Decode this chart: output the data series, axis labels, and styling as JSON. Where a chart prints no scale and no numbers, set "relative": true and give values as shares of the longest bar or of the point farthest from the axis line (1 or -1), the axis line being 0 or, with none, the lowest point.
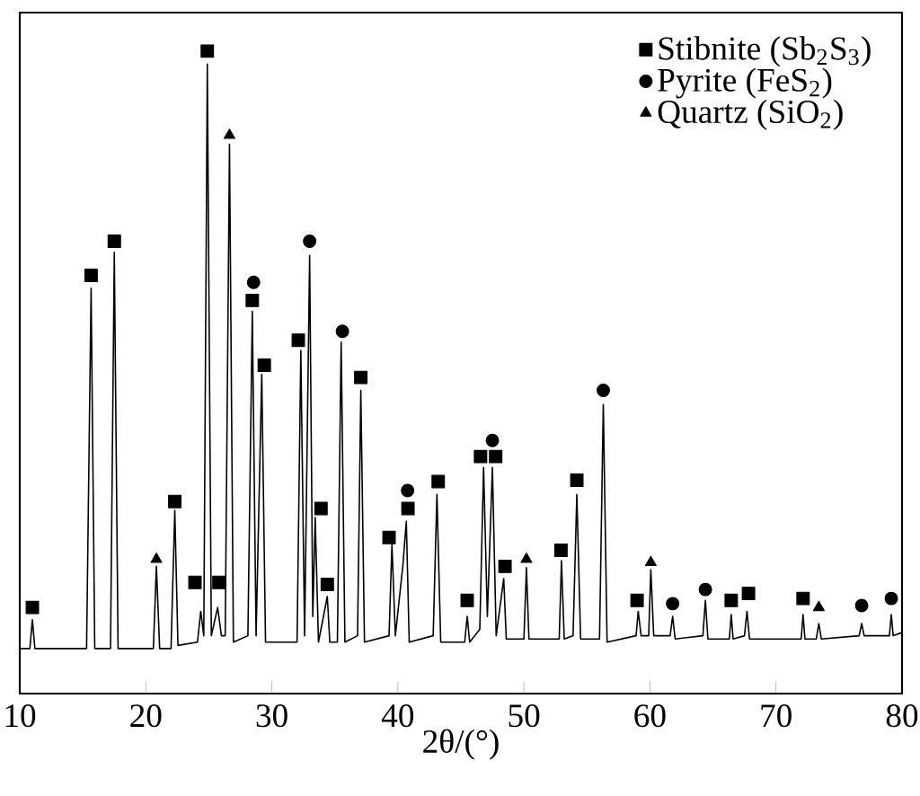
{
  "chart_data": {
    "type": "line",
    "relative": true,
    "xlabel": "2θ/(°)",
    "xlim": [
      10,
      80
    ],
    "xticks": [
      10,
      20,
      30,
      40,
      50,
      60,
      70,
      80
    ],
    "tick_labels": "x",
    "legend": "top right",
    "series": [
      {
        "color": "#000000",
        "x": [
          10,
          10.8,
          11.0,
          11.2,
          15.3,
          15.66,
          15.95,
          17.2,
          17.5,
          17.8,
          20.6,
          20.84,
          21.1,
          22.0,
          22.3,
          22.55,
          24.1,
          24.36,
          24.6,
          24.88,
          25.2,
          25.7,
          26.0,
          26.3,
          26.64,
          26.95,
          28.1,
          28.45,
          28.75,
          29.2,
          29.5,
          32.0,
          32.3,
          32.6,
          33.0,
          33.25,
          33.44,
          33.7,
          34.4,
          34.6,
          35.2,
          35.5,
          35.8,
          36.8,
          37.06,
          37.35,
          39.3,
          39.53,
          39.8,
          40.4,
          40.67,
          40.9,
          42.8,
          43.1,
          43.4,
          45.3,
          45.5,
          45.7,
          46.5,
          46.8,
          47.1,
          47.5,
          47.8,
          48.4,
          48.6,
          50.0,
          50.2,
          50.4,
          52.8,
          52.98,
          53.2,
          53.9,
          54.2,
          54.5,
          56.0,
          56.3,
          56.6,
          58.9,
          59.07,
          59.3,
          59.9,
          60.07,
          60.3,
          61.6,
          61.8,
          62.0,
          64.2,
          64.4,
          64.6,
          66.3,
          66.45,
          66.6,
          67.5,
          67.7,
          67.9,
          72.0,
          72.15,
          72.3,
          73.2,
          73.4,
          73.6,
          76.6,
          76.8,
          77.0,
          79.0,
          79.15,
          79.3,
          80
        ],
        "values": [
          0.07,
          0.07,
          0.115,
          0.07,
          0.07,
          0.631,
          0.07,
          0.07,
          0.687,
          0.07,
          0.07,
          0.198,
          0.07,
          0.07,
          0.285,
          0.075,
          0.08,
          0.128,
          0.09,
          0.98,
          0.09,
          0.134,
          0.09,
          0.09,
          0.855,
          0.08,
          0.09,
          0.595,
          0.09,
          0.497,
          0.08,
          0.08,
          0.534,
          0.09,
          0.682,
          0.12,
          0.274,
          0.08,
          0.151,
          0.08,
          0.08,
          0.547,
          0.08,
          0.09,
          0.472,
          0.08,
          0.09,
          0.232,
          0.09,
          0.2,
          0.268,
          0.08,
          0.09,
          0.31,
          0.08,
          0.08,
          0.12,
          0.08,
          0.1,
          0.352,
          0.12,
          0.352,
          0.09,
          0.179,
          0.085,
          0.085,
          0.196,
          0.085,
          0.085,
          0.207,
          0.085,
          0.09,
          0.31,
          0.085,
          0.085,
          0.45,
          0.08,
          0.09,
          0.128,
          0.09,
          0.09,
          0.193,
          0.09,
          0.09,
          0.12,
          0.085,
          0.09,
          0.145,
          0.085,
          0.085,
          0.123,
          0.085,
          0.09,
          0.128,
          0.085,
          0.085,
          0.123,
          0.085,
          0.085,
          0.109,
          0.085,
          0.09,
          0.109,
          0.09,
          0.09,
          0.123,
          0.09,
          0.095
        ]
      },
      {
        "type": "scatter",
        "name": "Stibnite (Sb$_{2}$S$_{3}$)",
        "marker": "square",
        "color": "#000000",
        "x": [
          11.0,
          15.66,
          17.5,
          22.3,
          23.9,
          24.88,
          25.8,
          28.45,
          29.4,
          32.1,
          33.9,
          34.4,
          37.06,
          39.3,
          40.8,
          43.2,
          45.5,
          46.56,
          47.76,
          48.5,
          52.94,
          54.2,
          58.98,
          66.45,
          67.82,
          72.15
        ],
        "values": [
          0.134,
          0.651,
          0.704,
          0.299,
          0.173,
          1.0,
          0.173,
          0.612,
          0.511,
          0.55,
          0.288,
          0.17,
          0.492,
          0.243,
          0.288,
          0.33,
          0.145,
          0.369,
          0.369,
          0.198,
          0.223,
          0.332,
          0.145,
          0.145,
          0.156,
          0.148
        ]
      },
      {
        "type": "scatter",
        "name": "Pyrite (FeS$_{2}$)",
        "marker": "circle",
        "color": "#000000",
        "x": [
          28.55,
          33.0,
          35.6,
          40.77,
          47.5,
          56.3,
          61.8,
          64.4,
          76.8,
          79.15
        ],
        "values": [
          0.64,
          0.704,
          0.564,
          0.316,
          0.394,
          0.472,
          0.14,
          0.162,
          0.137,
          0.148
        ]
      },
      {
        "type": "scatter",
        "name": "Quartz (SiO$_{2}$)",
        "marker": "triangle",
        "color": "#000000",
        "x": [
          20.84,
          26.64,
          50.2,
          60.07,
          73.4
        ],
        "values": [
          0.209,
          0.869,
          0.209,
          0.204,
          0.134
        ]
      }
    ]
  }
}
